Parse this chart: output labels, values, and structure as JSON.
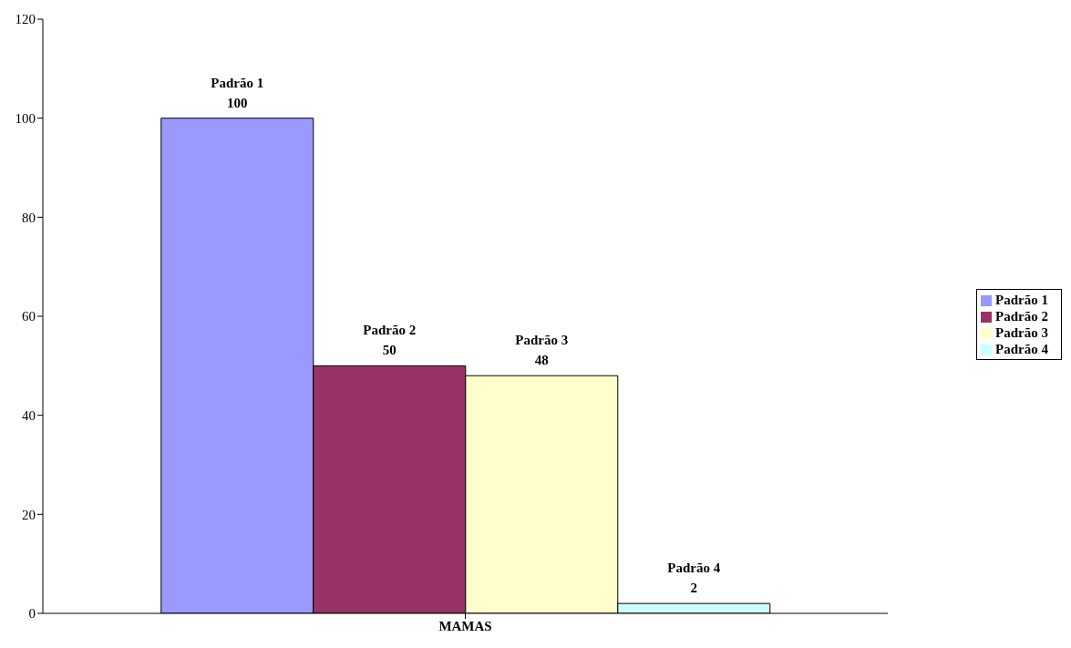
{
  "chart_data": {
    "type": "bar",
    "categories": [
      "MAMAS"
    ],
    "series": [
      {
        "name": "Padrão 1",
        "color": "#9999ff",
        "values": [
          100
        ]
      },
      {
        "name": "Padrão 2",
        "color": "#993366",
        "values": [
          50
        ]
      },
      {
        "name": "Padrão 3",
        "color": "#ffffcc",
        "values": [
          48
        ]
      },
      {
        "name": "Padrão 4",
        "color": "#ccffff",
        "values": [
          2
        ]
      }
    ],
    "ylim": [
      0,
      120
    ],
    "yticks": [
      0,
      20,
      40,
      60,
      80,
      100,
      120
    ],
    "grid": false,
    "legend": "right",
    "data_labels": true
  }
}
